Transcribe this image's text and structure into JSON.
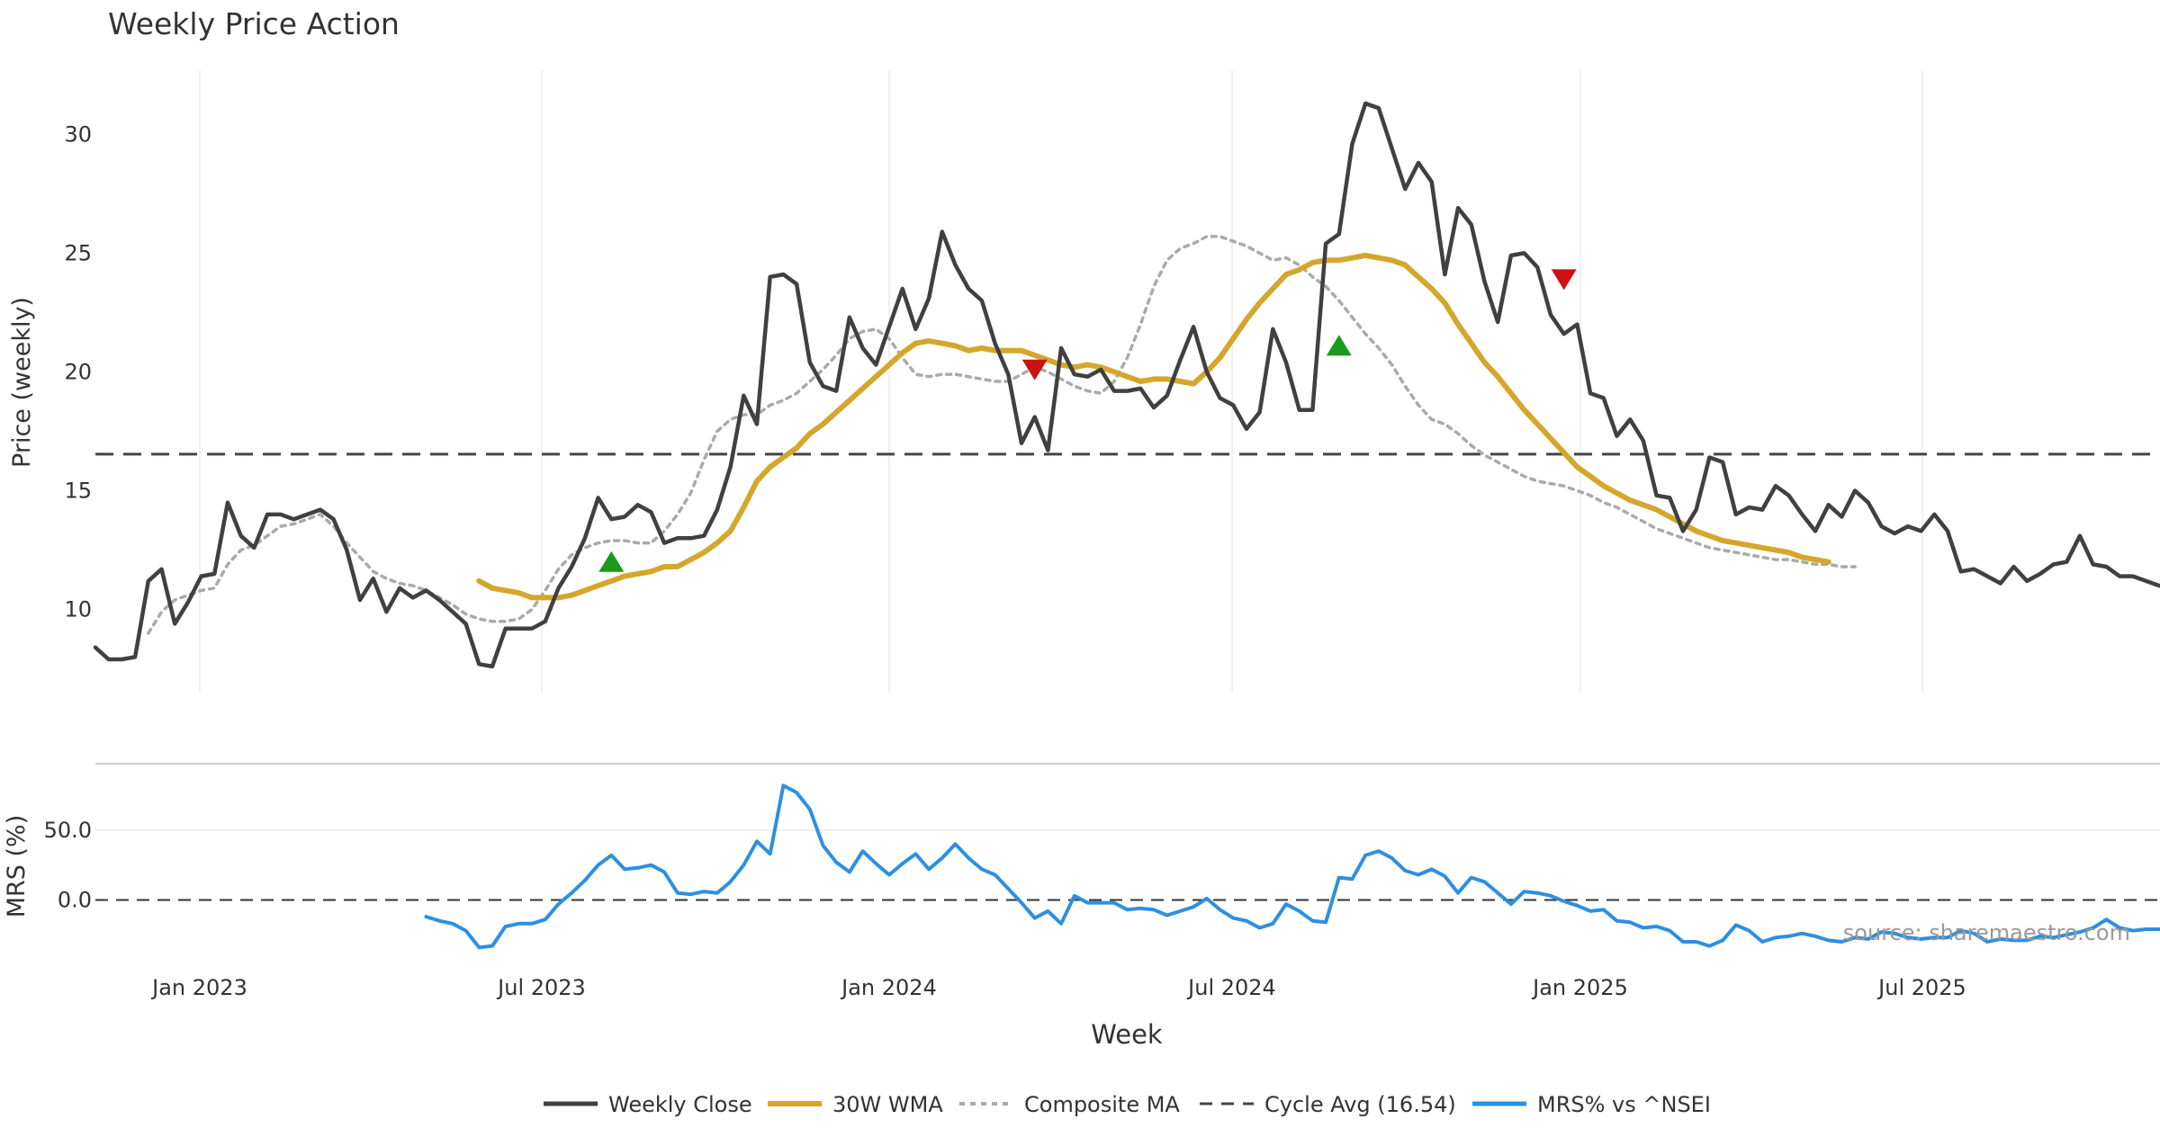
{
  "chart_data": {
    "type": "line",
    "title": "Weekly Price Action",
    "xlabel": "Week",
    "source_note": "source: sharemaestro.com",
    "x_ticks": [
      "Jan 2023",
      "Jul 2023",
      "Jan 2024",
      "Jul 2024",
      "Jan 2025",
      "Jul 2025"
    ],
    "colors": {
      "close": "#404040",
      "wma": "#d4a72c",
      "composite": "#aaaaaa",
      "cycle": "#444444",
      "mrs": "#2e8fe0",
      "buy": "#1a9a1a",
      "sell": "#cc1111"
    },
    "price_panel": {
      "ylabel": "Price (weekly)",
      "ylim": [
        6.5,
        32.7
      ],
      "yticks": [
        10,
        15,
        20,
        25,
        30
      ],
      "cycle_avg": 16.54,
      "series": [
        {
          "name": "Weekly Close",
          "start_week": 0,
          "values": [
            8.4,
            7.9,
            7.9,
            8.0,
            11.2,
            11.7,
            9.4,
            10.3,
            11.4,
            11.5,
            14.5,
            13.1,
            12.6,
            14.0,
            14.0,
            13.8,
            14.0,
            14.2,
            13.8,
            12.5,
            10.4,
            11.3,
            9.9,
            10.9,
            10.5,
            10.8,
            10.4,
            9.9,
            9.4,
            7.7,
            7.6,
            9.2,
            9.2,
            9.2,
            9.5,
            10.9,
            11.8,
            13.0,
            14.7,
            13.8,
            13.9,
            14.4,
            14.1,
            12.8,
            13.0,
            13.0,
            13.1,
            14.2,
            16.0,
            19.0,
            17.8,
            24.0,
            24.1,
            23.7,
            20.4,
            19.4,
            19.2,
            22.3,
            21.0,
            20.3,
            21.9,
            23.5,
            21.8,
            23.1,
            25.9,
            24.5,
            23.5,
            23.0,
            21.2,
            19.9,
            17.0,
            18.1,
            16.7,
            21.0,
            19.9,
            19.8,
            20.1,
            19.2,
            19.2,
            19.3,
            18.5,
            19.0,
            20.5,
            21.9,
            20.0,
            18.9,
            18.6,
            17.6,
            18.3,
            21.8,
            20.4,
            18.4,
            18.4,
            25.4,
            25.8,
            29.6,
            31.3,
            31.1,
            29.4,
            27.7,
            28.8,
            28.0,
            24.1,
            26.9,
            26.2,
            23.8,
            22.1,
            24.9,
            25.0,
            24.4,
            22.4,
            21.6,
            22.0,
            19.1,
            18.9,
            17.3,
            18.0,
            17.1,
            14.8,
            14.7,
            13.3,
            14.2,
            16.4,
            16.2,
            14.0,
            14.3,
            14.2,
            15.2,
            14.8,
            14.0,
            13.3,
            14.4,
            13.9,
            15.0,
            14.5,
            13.5,
            13.2,
            13.5,
            13.3,
            14.0,
            13.3,
            11.6,
            11.7,
            11.4,
            11.1,
            11.8,
            11.2,
            11.5,
            11.9,
            12.0,
            13.1,
            11.9,
            11.8,
            11.4,
            11.4,
            11.2,
            11.0
          ]
        },
        {
          "name": "30W WMA",
          "start_week": 29,
          "values": [
            11.2,
            10.9,
            10.8,
            10.7,
            10.5,
            10.5,
            10.5,
            10.6,
            10.8,
            11.0,
            11.2,
            11.4,
            11.5,
            11.6,
            11.8,
            11.8,
            12.1,
            12.4,
            12.8,
            13.3,
            14.3,
            15.4,
            16.0,
            16.4,
            16.8,
            17.4,
            17.8,
            18.3,
            18.8,
            19.3,
            19.8,
            20.3,
            20.8,
            21.2,
            21.3,
            21.2,
            21.1,
            20.9,
            21.0,
            20.9,
            20.9,
            20.9,
            20.7,
            20.5,
            20.3,
            20.2,
            20.3,
            20.2,
            20.0,
            19.8,
            19.6,
            19.7,
            19.7,
            19.6,
            19.5,
            20.0,
            20.6,
            21.4,
            22.2,
            22.9,
            23.5,
            24.1,
            24.3,
            24.6,
            24.7,
            24.7,
            24.8,
            24.9,
            24.8,
            24.7,
            24.5,
            24.0,
            23.5,
            22.9,
            22.0,
            21.2,
            20.4,
            19.8,
            19.1,
            18.4,
            17.8,
            17.2,
            16.6,
            16.0,
            15.6,
            15.2,
            14.9,
            14.6,
            14.4,
            14.2,
            13.9,
            13.6,
            13.3,
            13.1,
            12.9,
            12.8,
            12.7,
            12.6,
            12.5,
            12.4,
            12.2,
            12.1,
            12.0
          ]
        },
        {
          "name": "Composite MA",
          "start_week": 4,
          "values": [
            9.0,
            9.9,
            10.4,
            10.6,
            10.8,
            10.9,
            11.9,
            12.5,
            12.7,
            13.1,
            13.5,
            13.6,
            13.8,
            14.0,
            13.5,
            12.8,
            12.2,
            11.6,
            11.3,
            11.1,
            11.0,
            10.8,
            10.5,
            10.2,
            9.8,
            9.6,
            9.5,
            9.5,
            9.6,
            10.0,
            10.8,
            11.7,
            12.3,
            12.6,
            12.8,
            12.9,
            12.9,
            12.8,
            12.8,
            13.3,
            14.0,
            14.9,
            16.3,
            17.5,
            18.0,
            18.2,
            18.2,
            18.6,
            18.8,
            19.1,
            19.6,
            20.1,
            20.7,
            21.4,
            21.7,
            21.8,
            21.4,
            20.6,
            19.9,
            19.8,
            19.9,
            19.9,
            19.8,
            19.7,
            19.6,
            19.6,
            19.9,
            20.2,
            20.0,
            19.7,
            19.4,
            19.2,
            19.1,
            19.6,
            20.6,
            22.0,
            23.6,
            24.7,
            25.2,
            25.4,
            25.7,
            25.7,
            25.5,
            25.3,
            25.0,
            24.7,
            24.8,
            24.5,
            24.0,
            23.6,
            23.0,
            22.3,
            21.6,
            21.0,
            20.3,
            19.4,
            18.6,
            18.0,
            17.8,
            17.4,
            16.9,
            16.5,
            16.2,
            15.9,
            15.6,
            15.4,
            15.3,
            15.2,
            15.0,
            14.8,
            14.5,
            14.3,
            14.0,
            13.7,
            13.4,
            13.2,
            13.0,
            12.8,
            12.6,
            12.5,
            12.4,
            12.3,
            12.2,
            12.1,
            12.1,
            12.0,
            11.9,
            11.9,
            11.8,
            11.8
          ]
        },
        {
          "name": "Cycle Avg (16.54)",
          "constant": 16.54
        }
      ],
      "signals": [
        {
          "type": "buy",
          "week": 39,
          "value": 12.0
        },
        {
          "type": "sell",
          "week": 71,
          "value": 20.1
        },
        {
          "type": "buy",
          "week": 94,
          "value": 21.1
        },
        {
          "type": "sell",
          "week": 111,
          "value": 23.9
        }
      ]
    },
    "mrs_panel": {
      "ylabel": "MRS (%)",
      "ylim": [
        -50,
        97
      ],
      "yticks": [
        50,
        0
      ],
      "ytick_labels": [
        "50.0",
        "0.0"
      ],
      "baseline": 0,
      "series": [
        {
          "name": "MRS% vs ^NSEI",
          "start_week": 25,
          "values": [
            -12,
            -15,
            -17,
            -22,
            -34,
            -33,
            -19,
            -17,
            -17,
            -14,
            -3,
            5,
            14,
            25,
            32,
            22,
            23,
            25,
            20,
            5,
            4,
            6,
            5,
            13,
            25,
            42,
            33,
            82,
            77,
            65,
            39,
            27,
            20,
            35,
            26,
            18,
            26,
            33,
            22,
            30,
            40,
            30,
            22,
            18,
            8,
            -2,
            -13,
            -8,
            -17,
            3,
            -2,
            -2,
            -2,
            -7,
            -6,
            -7,
            -11,
            -8,
            -5,
            1,
            -7,
            -13,
            -15,
            -20,
            -17,
            -3,
            -8,
            -15,
            -16,
            16,
            15,
            32,
            35,
            30,
            21,
            18,
            22,
            17,
            5,
            16,
            13,
            5,
            -3,
            6,
            5,
            3,
            -1,
            -4,
            -8,
            -7,
            -15,
            -16,
            -20,
            -19,
            -22,
            -30,
            -30,
            -33,
            -29,
            -18,
            -22,
            -30,
            -27,
            -26,
            -24,
            -26,
            -29,
            -30,
            -27,
            -28,
            -23,
            -24,
            -27,
            -28,
            -27,
            -27,
            -22,
            -24,
            -30,
            -28,
            -29,
            -29,
            -26,
            -27,
            -25,
            -23,
            -20,
            -14,
            -20,
            -22,
            -21,
            -21,
            -20
          ]
        }
      ]
    },
    "legend": {
      "placement": "bottom-center",
      "entries": [
        "Weekly Close",
        "30W WMA",
        "Composite MA",
        "Cycle Avg (16.54)",
        "MRS% vs ^NSEI"
      ]
    }
  }
}
